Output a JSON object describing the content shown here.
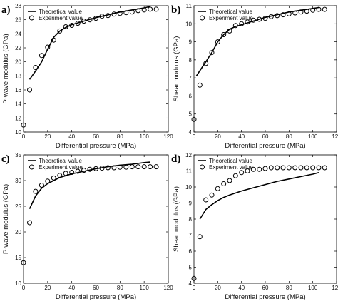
{
  "chart_data": [
    {
      "type": "line",
      "panel_label": "a)",
      "xlabel": "Differential pressure (MPa)",
      "ylabel": "P-wave modulus (GPa)",
      "xlim": [
        0,
        120
      ],
      "ylim": [
        10,
        28
      ],
      "xticks": [
        0,
        20,
        40,
        60,
        80,
        100,
        120
      ],
      "yticks": [
        10,
        12,
        14,
        16,
        18,
        20,
        22,
        24,
        26,
        28
      ],
      "legend_position": "top-left",
      "series": [
        {
          "name": "Theoretical value",
          "style": "line",
          "x": [
            5,
            10,
            15,
            20,
            25,
            30,
            35,
            40,
            50,
            60,
            70,
            80,
            90,
            100,
            105
          ],
          "y": [
            17.5,
            18.7,
            20.0,
            21.8,
            23.5,
            24.4,
            24.9,
            25.3,
            25.8,
            26.3,
            26.7,
            27.1,
            27.4,
            27.7,
            27.9
          ]
        },
        {
          "name": "Experiment value",
          "style": "markers",
          "x": [
            0,
            5,
            10,
            15,
            20,
            25,
            30,
            35,
            40,
            45,
            50,
            55,
            60,
            65,
            70,
            75,
            80,
            85,
            90,
            95,
            100,
            105,
            110
          ],
          "y": [
            11.0,
            16.0,
            19.2,
            20.9,
            22.1,
            23.1,
            24.4,
            25.0,
            25.2,
            25.5,
            25.8,
            26.0,
            26.2,
            26.5,
            26.6,
            26.8,
            26.9,
            27.0,
            27.1,
            27.3,
            27.4,
            27.5,
            27.5
          ]
        }
      ]
    },
    {
      "type": "line",
      "panel_label": "b)",
      "xlabel": "Differential pressure (MPa)",
      "ylabel": "Shear modulus (GPa)",
      "xlim": [
        0,
        120
      ],
      "ylim": [
        4,
        11
      ],
      "xticks": [
        0,
        20,
        40,
        60,
        80,
        100,
        120
      ],
      "yticks": [
        4,
        5,
        6,
        7,
        8,
        9,
        10,
        11
      ],
      "legend_position": "top-left",
      "series": [
        {
          "name": "Theoretical value",
          "style": "line",
          "x": [
            2,
            5,
            10,
            15,
            20,
            25,
            30,
            35,
            40,
            50,
            60,
            70,
            80,
            90,
            100,
            105
          ],
          "y": [
            7.1,
            7.4,
            7.9,
            8.4,
            9.0,
            9.4,
            9.7,
            9.85,
            9.95,
            10.15,
            10.35,
            10.5,
            10.65,
            10.75,
            10.85,
            10.9
          ]
        },
        {
          "name": "Experiment value",
          "style": "markers",
          "x": [
            0,
            5,
            10,
            15,
            20,
            25,
            30,
            35,
            40,
            45,
            50,
            55,
            60,
            65,
            70,
            75,
            80,
            85,
            90,
            95,
            100,
            105,
            110
          ],
          "y": [
            4.7,
            6.6,
            7.8,
            8.4,
            9.0,
            9.4,
            9.6,
            9.9,
            10.0,
            10.1,
            10.2,
            10.25,
            10.3,
            10.4,
            10.45,
            10.5,
            10.55,
            10.6,
            10.65,
            10.7,
            10.75,
            10.8,
            10.8
          ]
        }
      ]
    },
    {
      "type": "line",
      "panel_label": "c)",
      "xlabel": "Differential pressure (MPa)",
      "ylabel": "P-wave modulus (GPa)",
      "xlim": [
        0,
        120
      ],
      "ylim": [
        10,
        35
      ],
      "xticks": [
        0,
        20,
        40,
        60,
        80,
        100,
        120
      ],
      "yticks": [
        10,
        15,
        20,
        25,
        30,
        35
      ],
      "legend_position": "top-left",
      "series": [
        {
          "name": "Theoretical value",
          "style": "line",
          "x": [
            5,
            10,
            15,
            20,
            25,
            30,
            40,
            50,
            60,
            70,
            80,
            90,
            100,
            105
          ],
          "y": [
            24.5,
            27.0,
            28.5,
            29.4,
            30.0,
            30.6,
            31.3,
            31.8,
            32.3,
            32.7,
            33.0,
            33.2,
            33.5,
            33.6
          ]
        },
        {
          "name": "Experiment value",
          "style": "markers",
          "x": [
            0,
            5,
            10,
            15,
            20,
            25,
            30,
            35,
            40,
            45,
            50,
            55,
            60,
            65,
            70,
            75,
            80,
            85,
            90,
            95,
            100,
            105,
            110
          ],
          "y": [
            14.0,
            21.8,
            27.9,
            29.1,
            29.9,
            30.5,
            31.0,
            31.4,
            31.6,
            31.8,
            32.0,
            32.2,
            32.3,
            32.4,
            32.5,
            32.5,
            32.6,
            32.6,
            32.7,
            32.7,
            32.7,
            32.7,
            32.7
          ]
        }
      ]
    },
    {
      "type": "line",
      "panel_label": "d)",
      "xlabel": "Differential pressure (MPa)",
      "ylabel": "Shear modulus (GPa)",
      "xlim": [
        0,
        120
      ],
      "ylim": [
        4,
        12
      ],
      "xticks": [
        0,
        20,
        40,
        60,
        80,
        100,
        120
      ],
      "yticks": [
        4,
        5,
        6,
        7,
        8,
        9,
        10,
        11,
        12
      ],
      "legend_position": "top-left",
      "series": [
        {
          "name": "Theoretical value",
          "style": "line",
          "x": [
            5,
            10,
            15,
            20,
            25,
            30,
            40,
            50,
            60,
            70,
            80,
            90,
            100,
            105
          ],
          "y": [
            8.0,
            8.6,
            8.9,
            9.15,
            9.35,
            9.5,
            9.75,
            9.95,
            10.15,
            10.35,
            10.5,
            10.65,
            10.8,
            10.9
          ]
        },
        {
          "name": "Experiment value",
          "style": "markers",
          "x": [
            0,
            5,
            10,
            15,
            20,
            25,
            30,
            35,
            40,
            45,
            50,
            55,
            60,
            65,
            70,
            75,
            80,
            85,
            90,
            95,
            100,
            105,
            110
          ],
          "y": [
            4.3,
            6.9,
            9.2,
            9.5,
            9.9,
            10.2,
            10.4,
            10.7,
            10.9,
            11.0,
            11.1,
            11.1,
            11.15,
            11.2,
            11.2,
            11.2,
            11.2,
            11.2,
            11.2,
            11.2,
            11.2,
            11.2,
            11.2
          ]
        }
      ]
    }
  ]
}
